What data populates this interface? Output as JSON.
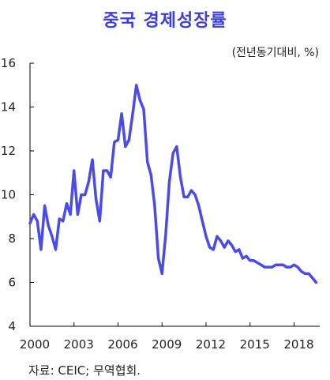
{
  "chart_data": {
    "type": "line",
    "title": "중국 경제성장률",
    "unit_label": "(전년동기대비,  %)",
    "source": "자료:  CEIC;  무역협회.",
    "ylim": [
      4,
      16
    ],
    "y_ticks": [
      "4",
      "6",
      "8",
      "10",
      "12",
      "14",
      "16"
    ],
    "xlim": [
      2000,
      2019.75
    ],
    "x_ticks": [
      "2000",
      "2003",
      "2006",
      "2009",
      "2012",
      "2015",
      "2018"
    ],
    "grid": false,
    "series": [
      {
        "color": "#4b4be6",
        "points": [
          [
            2000.0,
            8.7
          ],
          [
            2000.25,
            9.1
          ],
          [
            2000.5,
            8.8
          ],
          [
            2000.75,
            7.5
          ],
          [
            2001.0,
            9.5
          ],
          [
            2001.25,
            8.6
          ],
          [
            2001.5,
            8.1
          ],
          [
            2001.75,
            7.5
          ],
          [
            2002.0,
            8.9
          ],
          [
            2002.25,
            8.8
          ],
          [
            2002.5,
            9.6
          ],
          [
            2002.75,
            9.1
          ],
          [
            2003.0,
            11.1
          ],
          [
            2003.25,
            9.1
          ],
          [
            2003.5,
            10.0
          ],
          [
            2003.75,
            10.0
          ],
          [
            2004.0,
            10.6
          ],
          [
            2004.25,
            11.6
          ],
          [
            2004.5,
            9.8
          ],
          [
            2004.75,
            8.8
          ],
          [
            2005.0,
            11.1
          ],
          [
            2005.25,
            11.1
          ],
          [
            2005.5,
            10.8
          ],
          [
            2005.75,
            12.4
          ],
          [
            2006.0,
            12.5
          ],
          [
            2006.25,
            13.7
          ],
          [
            2006.5,
            12.2
          ],
          [
            2006.75,
            12.5
          ],
          [
            2007.0,
            13.7
          ],
          [
            2007.25,
            15.0
          ],
          [
            2007.5,
            14.3
          ],
          [
            2007.75,
            13.9
          ],
          [
            2008.0,
            11.5
          ],
          [
            2008.25,
            10.9
          ],
          [
            2008.5,
            9.5
          ],
          [
            2008.75,
            7.1
          ],
          [
            2009.0,
            6.4
          ],
          [
            2009.25,
            8.2
          ],
          [
            2009.5,
            10.6
          ],
          [
            2009.75,
            11.9
          ],
          [
            2010.0,
            12.2
          ],
          [
            2010.25,
            10.8
          ],
          [
            2010.5,
            9.9
          ],
          [
            2010.75,
            9.9
          ],
          [
            2011.0,
            10.2
          ],
          [
            2011.25,
            10.0
          ],
          [
            2011.5,
            9.5
          ],
          [
            2011.75,
            8.8
          ],
          [
            2012.0,
            8.1
          ],
          [
            2012.25,
            7.6
          ],
          [
            2012.5,
            7.5
          ],
          [
            2012.75,
            8.1
          ],
          [
            2013.0,
            7.9
          ],
          [
            2013.25,
            7.6
          ],
          [
            2013.5,
            7.9
          ],
          [
            2013.75,
            7.7
          ],
          [
            2014.0,
            7.4
          ],
          [
            2014.25,
            7.5
          ],
          [
            2014.5,
            7.1
          ],
          [
            2014.75,
            7.2
          ],
          [
            2015.0,
            7.0
          ],
          [
            2015.25,
            7.0
          ],
          [
            2015.5,
            6.9
          ],
          [
            2015.75,
            6.8
          ],
          [
            2016.0,
            6.7
          ],
          [
            2016.25,
            6.7
          ],
          [
            2016.5,
            6.7
          ],
          [
            2016.75,
            6.8
          ],
          [
            2017.0,
            6.8
          ],
          [
            2017.25,
            6.8
          ],
          [
            2017.5,
            6.7
          ],
          [
            2017.75,
            6.7
          ],
          [
            2018.0,
            6.8
          ],
          [
            2018.25,
            6.7
          ],
          [
            2018.5,
            6.5
          ],
          [
            2018.75,
            6.4
          ],
          [
            2019.0,
            6.4
          ],
          [
            2019.25,
            6.2
          ],
          [
            2019.5,
            6.0
          ]
        ]
      }
    ]
  }
}
